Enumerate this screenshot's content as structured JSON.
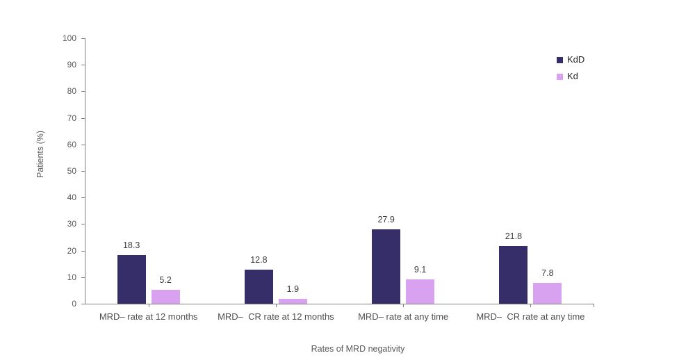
{
  "chart_data": {
    "type": "bar",
    "title": "",
    "xlabel": "Rates of MRD negativity",
    "ylabel": "Patients (%)",
    "categories": [
      "MRD– rate at 12 months",
      "MRD–  CR rate at 12 months",
      "MRD– rate at any time",
      "MRD–  CR rate at any time"
    ],
    "series": [
      {
        "name": "KdD",
        "color": "#352e68",
        "values": [
          18.3,
          12.8,
          27.9,
          21.8
        ]
      },
      {
        "name": "Kd",
        "color": "#d9a2f0",
        "values": [
          5.2,
          1.9,
          9.1,
          7.8
        ]
      }
    ],
    "ylim": [
      0,
      100
    ],
    "yticks": [
      0,
      10,
      20,
      30,
      40,
      50,
      60,
      70,
      80,
      90,
      100
    ],
    "grid": false,
    "legend_position": "top-right",
    "value_labels_shown": true,
    "axis_color": "#808080",
    "tick_label_color": "#595959",
    "value_label_color": "#3a3a3a"
  }
}
